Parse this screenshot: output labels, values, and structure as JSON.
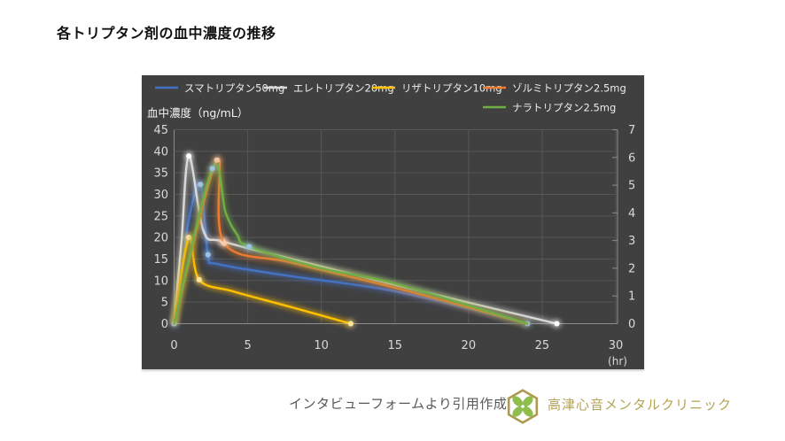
{
  "title": "各トリプタン剤の血中濃度の推移",
  "chart_data": {
    "type": "line",
    "title": "各トリプタン剤の血中濃度の推移",
    "y_left": {
      "label": "血中濃度（ng/mL）",
      "min": 0,
      "max": 45,
      "step": 5,
      "ticks": [
        0,
        5,
        10,
        15,
        20,
        25,
        30,
        35,
        40,
        45
      ]
    },
    "y_right": {
      "min": 0,
      "max": 7,
      "step": 1,
      "ticks": [
        0,
        1,
        2,
        3,
        4,
        5,
        6,
        7
      ]
    },
    "x": {
      "label": "(hr)",
      "min": 0,
      "max": 30,
      "step": 5,
      "ticks": [
        0,
        5,
        10,
        15,
        20,
        25,
        30
      ]
    },
    "grid": true,
    "legend_position": "top",
    "style": {
      "panel_bg": "#404040",
      "grid_color": "#575757",
      "axis_color": "#8C8C8C",
      "tick_label_color": "#D9D9D9",
      "legend_text_color": "#ECECEC"
    },
    "series": [
      {
        "name": "スマトリプタン50mg",
        "color": "#4472C4",
        "marker_color": "#9DC3E6",
        "axis": "left",
        "points": [
          [
            0,
            0
          ],
          [
            1,
            24
          ],
          [
            1.8,
            32.3
          ],
          [
            2.3,
            16
          ],
          [
            3,
            13.8
          ],
          [
            8,
            11
          ],
          [
            15,
            7.5
          ],
          [
            24,
            0
          ]
        ],
        "markers": [
          [
            0,
            0
          ],
          [
            1.8,
            32.3
          ],
          [
            2.3,
            16
          ],
          [
            24,
            0
          ]
        ]
      },
      {
        "name": "エレトリプタン20mg",
        "color": "#D9D9D9",
        "marker_color": "#FFFFFF",
        "axis": "left",
        "points": [
          [
            0,
            0
          ],
          [
            0.5,
            19
          ],
          [
            1,
            38.9
          ],
          [
            2,
            21.5
          ],
          [
            3.3,
            19.1
          ],
          [
            8,
            15
          ],
          [
            15,
            9
          ],
          [
            26,
            0
          ]
        ],
        "markers": [
          [
            1,
            38.9
          ],
          [
            3.3,
            19.1
          ],
          [
            26,
            0
          ]
        ]
      },
      {
        "name": "リザトリプタン10mg",
        "color": "#FFC000",
        "marker_color": "#FFE699",
        "axis": "left",
        "points": [
          [
            0,
            0
          ],
          [
            1,
            20
          ],
          [
            1.7,
            10.2
          ],
          [
            4,
            7.5
          ],
          [
            8,
            3.8
          ],
          [
            12,
            0
          ]
        ],
        "markers": [
          [
            1,
            20
          ],
          [
            1.7,
            10.2
          ],
          [
            12,
            0
          ]
        ]
      },
      {
        "name": "ゾルミトリプタン2.5mg",
        "color": "#ED7D31",
        "marker_color": "#F8CBAD",
        "axis": "right",
        "points": [
          [
            0,
            0
          ],
          [
            2.9,
            5.9
          ],
          [
            3.4,
            2.9
          ],
          [
            8,
            2.2
          ],
          [
            15,
            1.3
          ],
          [
            24,
            0
          ]
        ],
        "markers": [
          [
            2.9,
            5.9
          ],
          [
            3.4,
            2.9
          ]
        ]
      },
      {
        "name": "ナラトリプタン2.5mg",
        "color": "#70AD47",
        "marker_color": "#9DC3E6",
        "axis": "right",
        "points": [
          [
            0,
            0
          ],
          [
            2.6,
            5.6
          ],
          [
            3.5,
            4.0
          ],
          [
            4.3,
            3.2
          ],
          [
            5.1,
            2.78
          ],
          [
            10,
            2.0
          ],
          [
            15,
            1.45
          ],
          [
            24,
            0
          ]
        ],
        "markers": [
          [
            2.6,
            5.6
          ],
          [
            5.1,
            2.78
          ]
        ]
      }
    ]
  },
  "footer": {
    "source_note": "インタビューフォームより引用作成",
    "clinic_name": "高津心音メンタルクリニック",
    "logo_colors": {
      "gold": "#AD9B50",
      "white": "#FFFFFF",
      "green": "#8FBE4F"
    }
  }
}
